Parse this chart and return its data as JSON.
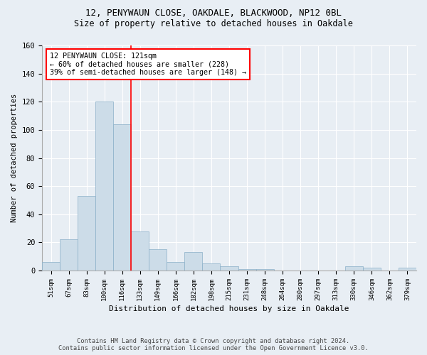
{
  "title1": "12, PENYWAUN CLOSE, OAKDALE, BLACKWOOD, NP12 0BL",
  "title2": "Size of property relative to detached houses in Oakdale",
  "xlabel": "Distribution of detached houses by size in Oakdale",
  "ylabel": "Number of detached properties",
  "categories": [
    "51sqm",
    "67sqm",
    "83sqm",
    "100sqm",
    "116sqm",
    "133sqm",
    "149sqm",
    "166sqm",
    "182sqm",
    "198sqm",
    "215sqm",
    "231sqm",
    "248sqm",
    "264sqm",
    "280sqm",
    "297sqm",
    "313sqm",
    "330sqm",
    "346sqm",
    "362sqm",
    "379sqm"
  ],
  "values": [
    6,
    22,
    53,
    120,
    104,
    28,
    15,
    6,
    13,
    5,
    3,
    1,
    1,
    0,
    0,
    0,
    0,
    3,
    2,
    0,
    2
  ],
  "bar_color": "#ccdce8",
  "bar_edge_color": "#8ab0c8",
  "red_line_x": 4.5,
  "annotation_line1": "12 PENYWAUN CLOSE: 121sqm",
  "annotation_line2": "← 60% of detached houses are smaller (228)",
  "annotation_line3": "39% of semi-detached houses are larger (148) →",
  "annotation_box_color": "white",
  "annotation_box_edge_color": "red",
  "footer1": "Contains HM Land Registry data © Crown copyright and database right 2024.",
  "footer2": "Contains public sector information licensed under the Open Government Licence v3.0.",
  "ylim": [
    0,
    160
  ],
  "background_color": "#e8eef4",
  "grid_color": "#ffffff",
  "title1_fontsize": 9,
  "title2_fontsize": 8.5
}
